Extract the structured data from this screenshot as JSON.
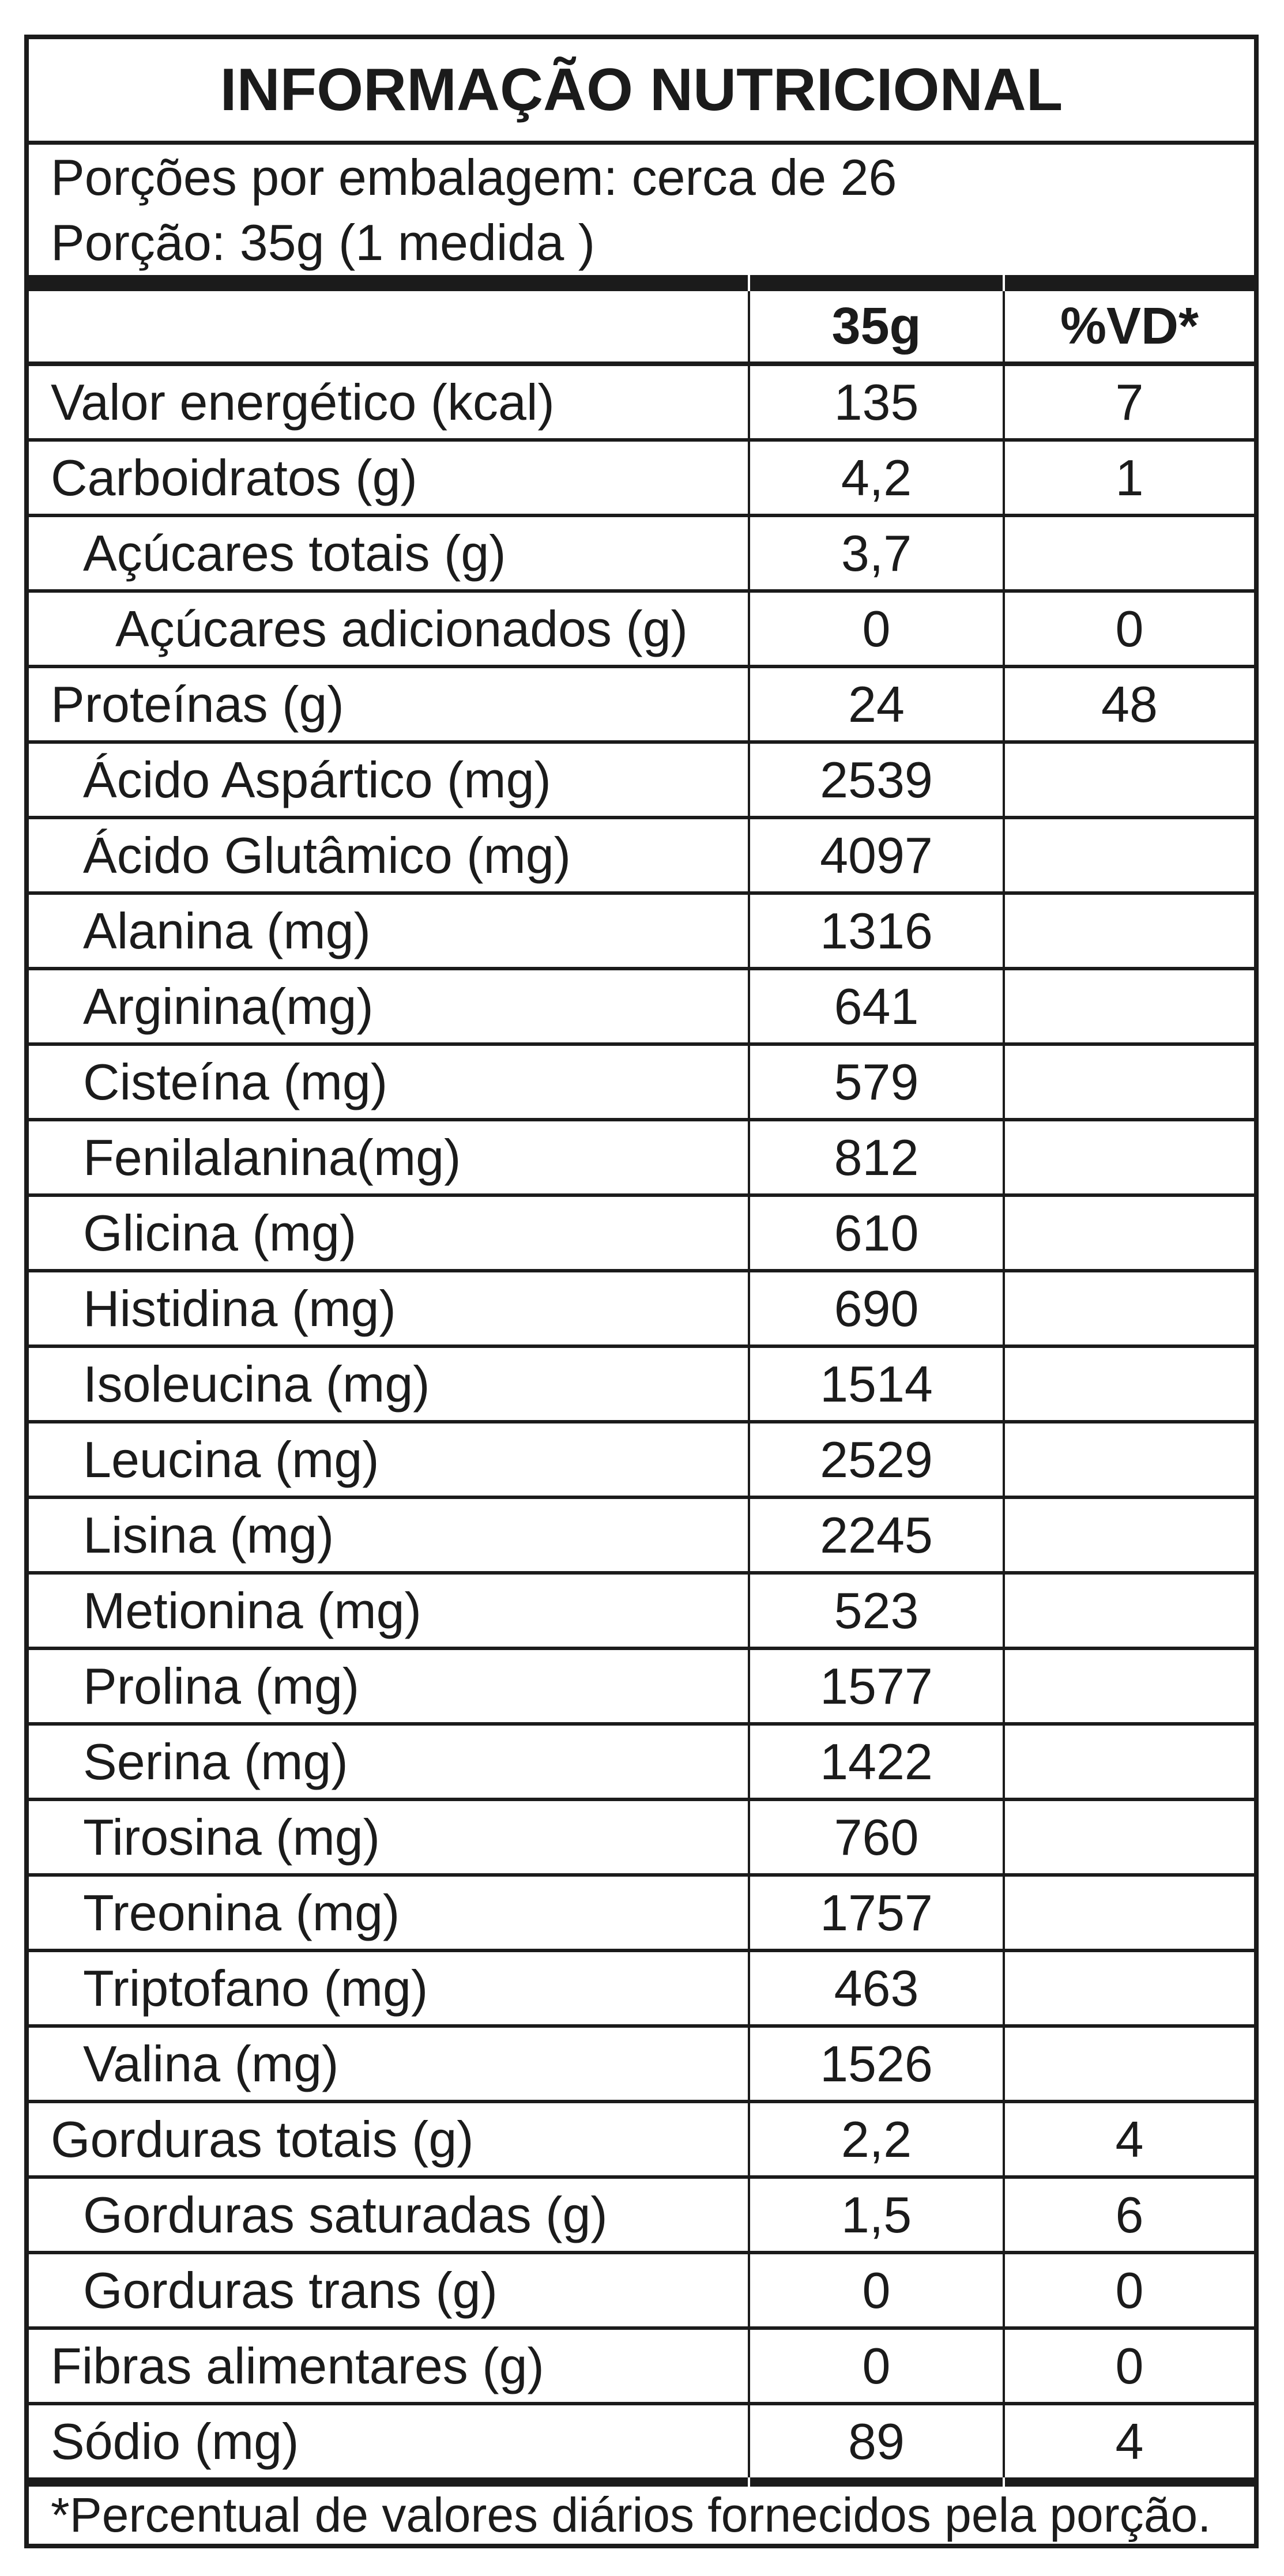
{
  "header": {
    "title": "INFORMAÇÃO NUTRICIONAL",
    "servings_line": "Porções por embalagem: cerca de 26",
    "portion_line": "Porção: 35g (1 medida )"
  },
  "columns": {
    "amount": "35g",
    "dv": "%VD*"
  },
  "rows": [
    {
      "name": "Valor energético (kcal)",
      "indent": 0,
      "amount": "135",
      "dv": "7"
    },
    {
      "name": "Carboidratos (g)",
      "indent": 0,
      "amount": "4,2",
      "dv": "1"
    },
    {
      "name": "Açúcares totais (g)",
      "indent": 1,
      "amount": "3,7",
      "dv": ""
    },
    {
      "name": "Açúcares adicionados (g)",
      "indent": 2,
      "amount": "0",
      "dv": "0"
    },
    {
      "name": "Proteínas (g)",
      "indent": 0,
      "amount": "24",
      "dv": "48"
    },
    {
      "name": "Ácido Aspártico (mg)",
      "indent": 1,
      "amount": "2539",
      "dv": ""
    },
    {
      "name": "Ácido Glutâmico (mg)",
      "indent": 1,
      "amount": "4097",
      "dv": ""
    },
    {
      "name": "Alanina (mg)",
      "indent": 1,
      "amount": "1316",
      "dv": ""
    },
    {
      "name": "Arginina(mg)",
      "indent": 1,
      "amount": "641",
      "dv": ""
    },
    {
      "name": "Cisteína (mg)",
      "indent": 1,
      "amount": "579",
      "dv": ""
    },
    {
      "name": "Fenilalanina(mg)",
      "indent": 1,
      "amount": "812",
      "dv": ""
    },
    {
      "name": "Glicina (mg)",
      "indent": 1,
      "amount": "610",
      "dv": ""
    },
    {
      "name": "Histidina (mg)",
      "indent": 1,
      "amount": "690",
      "dv": ""
    },
    {
      "name": "Isoleucina (mg)",
      "indent": 1,
      "amount": "1514",
      "dv": ""
    },
    {
      "name": "Leucina (mg)",
      "indent": 1,
      "amount": "2529",
      "dv": ""
    },
    {
      "name": "Lisina (mg)",
      "indent": 1,
      "amount": "2245",
      "dv": ""
    },
    {
      "name": "Metionina (mg)",
      "indent": 1,
      "amount": "523",
      "dv": ""
    },
    {
      "name": "Prolina (mg)",
      "indent": 1,
      "amount": "1577",
      "dv": ""
    },
    {
      "name": "Serina (mg)",
      "indent": 1,
      "amount": "1422",
      "dv": ""
    },
    {
      "name": "Tirosina (mg)",
      "indent": 1,
      "amount": "760",
      "dv": ""
    },
    {
      "name": "Treonina (mg)",
      "indent": 1,
      "amount": "1757",
      "dv": ""
    },
    {
      "name": "Triptofano (mg)",
      "indent": 1,
      "amount": "463",
      "dv": ""
    },
    {
      "name": "Valina (mg)",
      "indent": 1,
      "amount": "1526",
      "dv": ""
    },
    {
      "name": "Gorduras totais (g)",
      "indent": 0,
      "amount": "2,2",
      "dv": "4"
    },
    {
      "name": "Gorduras saturadas (g)",
      "indent": 1,
      "amount": "1,5",
      "dv": "6"
    },
    {
      "name": "Gorduras trans (g)",
      "indent": 1,
      "amount": "0",
      "dv": "0"
    },
    {
      "name": "Fibras alimentares (g)",
      "indent": 0,
      "amount": "0",
      "dv": "0"
    },
    {
      "name": "Sódio (mg)",
      "indent": 0,
      "amount": "89",
      "dv": "4"
    }
  ],
  "footnote": "*Percentual de valores diários fornecidos pela porção.",
  "colors": {
    "ink": "#1b1b1b",
    "paper": "#ffffff"
  }
}
